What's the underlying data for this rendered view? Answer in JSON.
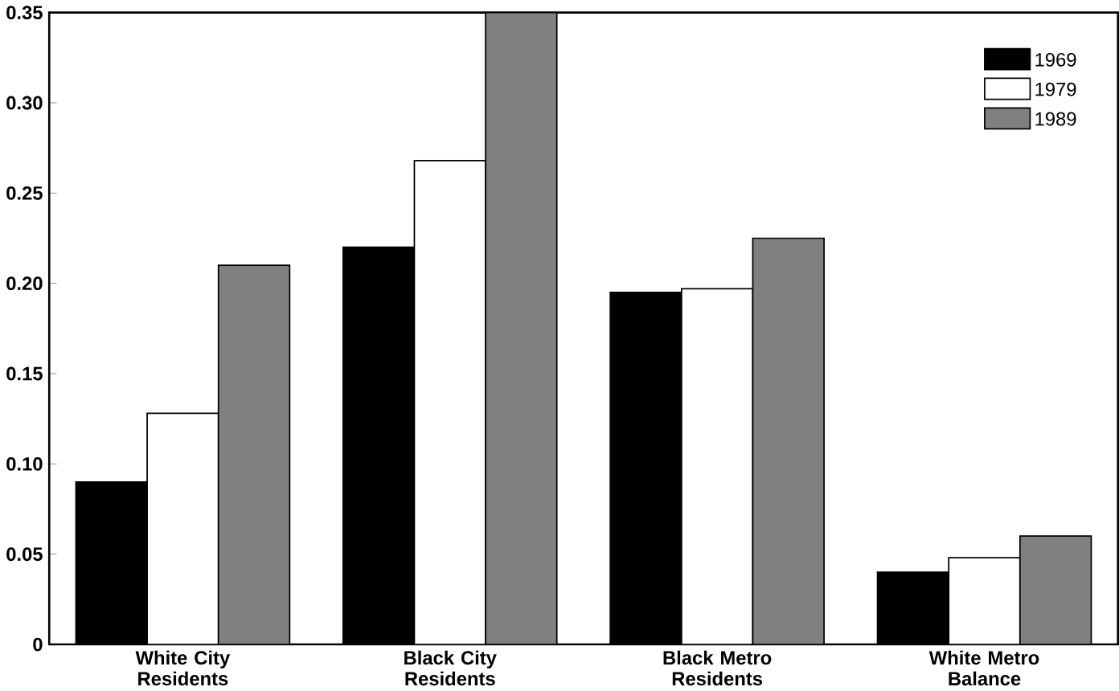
{
  "chart_data": {
    "type": "bar",
    "categories": [
      "White City\nResidents",
      "Black City\nResidents",
      "Black Metro\nResidents",
      "White Metro\nBalance"
    ],
    "series": [
      {
        "name": "1969",
        "color": "#000000",
        "values": [
          0.09,
          0.22,
          0.195,
          0.04
        ]
      },
      {
        "name": "1979",
        "color": "#ffffff",
        "values": [
          0.128,
          0.268,
          0.197,
          0.048
        ]
      },
      {
        "name": "1989",
        "color": "#808080",
        "values": [
          0.21,
          0.35,
          0.225,
          0.06
        ]
      }
    ],
    "ylim": [
      0,
      0.35
    ],
    "yticks": [
      {
        "value": 0,
        "label": "0"
      },
      {
        "value": 0.05,
        "label": "0.05"
      },
      {
        "value": 0.1,
        "label": "0.10"
      },
      {
        "value": 0.15,
        "label": "0.15"
      },
      {
        "value": 0.2,
        "label": "0.20"
      },
      {
        "value": 0.25,
        "label": "0.25"
      },
      {
        "value": 0.3,
        "label": "0.30"
      },
      {
        "value": 0.35,
        "label": "0.35"
      }
    ],
    "grid": false,
    "legend": "top right"
  }
}
